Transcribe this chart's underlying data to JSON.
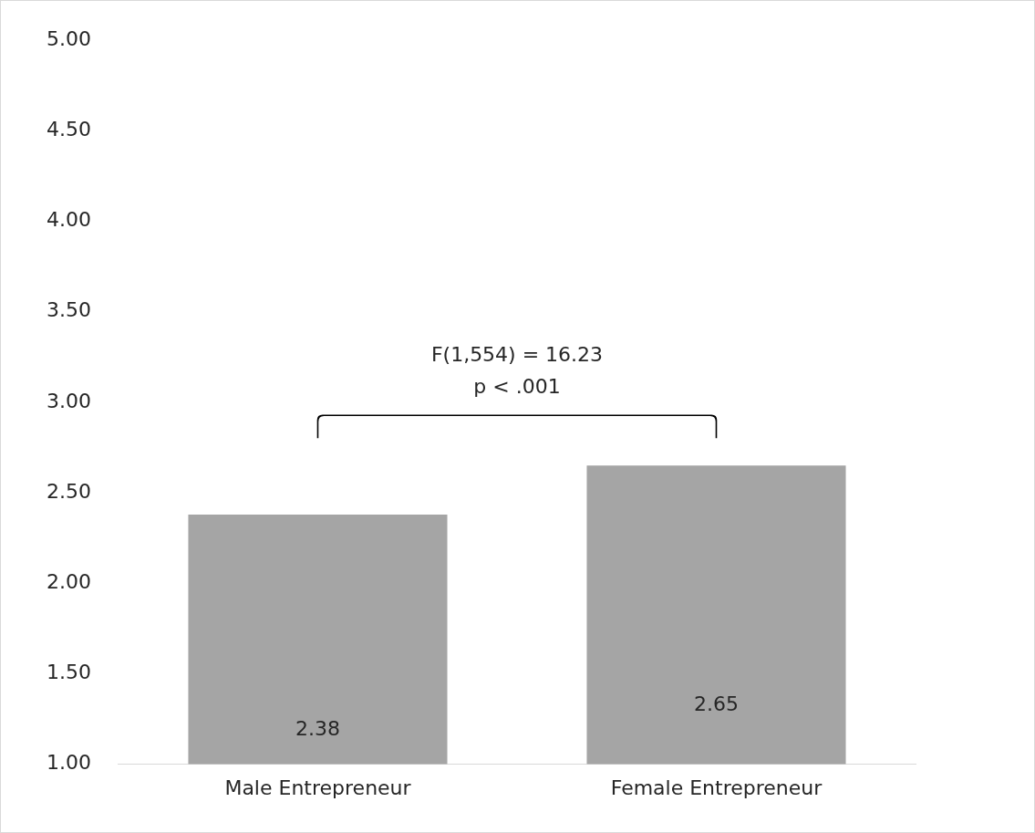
{
  "chart_data": {
    "type": "bar",
    "categories": [
      "Male Entrepreneur",
      "Female Entrepreneur"
    ],
    "values": [
      2.38,
      2.65
    ],
    "color": "#a5a5a5",
    "ylim": [
      1,
      5
    ],
    "yticks": [
      {
        "value": 1,
        "label": "1.00"
      },
      {
        "value": 1.5,
        "label": "1.50"
      },
      {
        "value": 2,
        "label": "2.00"
      },
      {
        "value": 2.5,
        "label": "2.50"
      },
      {
        "value": 3,
        "label": "3.00"
      },
      {
        "value": 3.5,
        "label": "3.50"
      },
      {
        "value": 4,
        "label": "4.00"
      },
      {
        "value": 4.5,
        "label": "4.50"
      },
      {
        "value": 5,
        "label": "5.00"
      }
    ],
    "grid": false,
    "legend": false,
    "data_labels": true,
    "annotations": [
      "F(1,554) = 16.23",
      "p < .001"
    ]
  }
}
